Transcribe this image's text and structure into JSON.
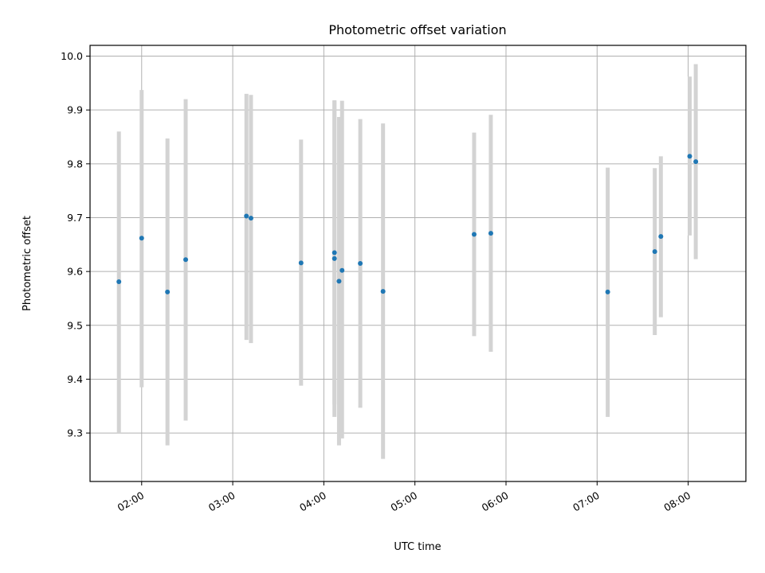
{
  "chart_data": {
    "type": "scatter",
    "title": "Photometric offset variation",
    "xlabel": "UTC time",
    "ylabel": "Photometric offset",
    "x_unit": "UTC time (HH:MM)",
    "xlim": [
      "01:26",
      "08:38"
    ],
    "ylim": [
      9.21,
      10.02
    ],
    "x_ticks": [
      "02:00",
      "03:00",
      "04:00",
      "05:00",
      "06:00",
      "07:00",
      "08:00"
    ],
    "y_ticks": [
      "9.3",
      "9.4",
      "9.5",
      "9.6",
      "9.7",
      "9.8",
      "9.9",
      "10.0"
    ],
    "grid": true,
    "colors": {
      "marker": "#1f77b4",
      "error_bar": "#d3d3d3",
      "grid": "#b0b0b0"
    },
    "points": [
      {
        "x": "01:45",
        "y": 9.581,
        "low": 9.3,
        "high": 9.86
      },
      {
        "x": "02:00",
        "y": 9.662,
        "low": 9.385,
        "high": 9.937
      },
      {
        "x": "02:17",
        "y": 9.562,
        "low": 9.277,
        "high": 9.847
      },
      {
        "x": "02:29",
        "y": 9.622,
        "low": 9.323,
        "high": 9.92
      },
      {
        "x": "03:09",
        "y": 9.703,
        "low": 9.473,
        "high": 9.93
      },
      {
        "x": "03:12",
        "y": 9.699,
        "low": 9.467,
        "high": 9.928
      },
      {
        "x": "03:45",
        "y": 9.616,
        "low": 9.388,
        "high": 9.845
      },
      {
        "x": "04:07",
        "y": 9.635,
        "low": 9.353,
        "high": 9.917
      },
      {
        "x": "04:07",
        "y": 9.624,
        "low": 9.33,
        "high": 9.918
      },
      {
        "x": "04:10",
        "y": 9.582,
        "low": 9.277,
        "high": 9.887
      },
      {
        "x": "04:12",
        "y": 9.602,
        "low": 9.29,
        "high": 9.917
      },
      {
        "x": "04:24",
        "y": 9.615,
        "low": 9.347,
        "high": 9.883
      },
      {
        "x": "04:39",
        "y": 9.563,
        "low": 9.252,
        "high": 9.875
      },
      {
        "x": "05:39",
        "y": 9.669,
        "low": 9.48,
        "high": 9.858
      },
      {
        "x": "05:50",
        "y": 9.671,
        "low": 9.451,
        "high": 9.891
      },
      {
        "x": "07:07",
        "y": 9.562,
        "low": 9.33,
        "high": 9.793
      },
      {
        "x": "07:38",
        "y": 9.637,
        "low": 9.482,
        "high": 9.792
      },
      {
        "x": "07:42",
        "y": 9.665,
        "low": 9.515,
        "high": 9.814
      },
      {
        "x": "08:01",
        "y": 9.814,
        "low": 9.667,
        "high": 9.962
      },
      {
        "x": "08:05",
        "y": 9.804,
        "low": 9.623,
        "high": 9.985
      }
    ]
  }
}
